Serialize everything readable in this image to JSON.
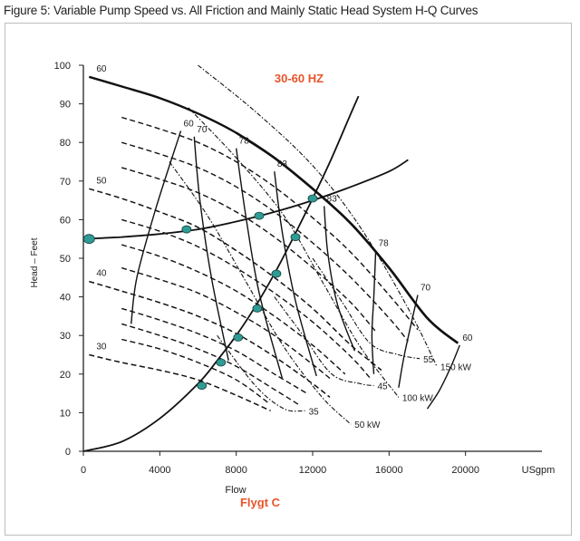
{
  "figure_title": "Figure 5: Variable Pump Speed vs. All Friction and Mainly Static Head System H-Q Curves",
  "chart_data": {
    "type": "line",
    "xlabel": "Flow",
    "ylabel": "Head – Feet",
    "x_unit_label": "USgpm",
    "xlim": [
      0,
      24000
    ],
    "ylim": [
      0,
      100
    ],
    "x_ticks": [
      0,
      4000,
      8000,
      12000,
      16000,
      20000
    ],
    "y_ticks": [
      0,
      10,
      20,
      30,
      40,
      50,
      60,
      70,
      80,
      90,
      100
    ],
    "annotations": {
      "frequency_range": "30-60 HZ",
      "brand": "Flygt C"
    },
    "pump_curves": [
      {
        "label": "60",
        "x": [
          300,
          2000,
          4000,
          6000,
          8000,
          10000,
          12000,
          14000,
          16000,
          18000,
          19600
        ],
        "y": [
          97,
          94.5,
          91.5,
          87.5,
          82.5,
          76,
          68,
          59,
          47.5,
          34.5,
          28
        ]
      },
      {
        "label": "50",
        "x": [
          300,
          2000,
          4000,
          6000,
          8000,
          10000,
          12000,
          14000,
          15600
        ],
        "y": [
          68,
          65.5,
          62,
          58,
          52,
          45,
          37,
          27.5,
          21
        ]
      },
      {
        "label": "40",
        "x": [
          300,
          2000,
          4000,
          6000,
          8000,
          10000,
          12000,
          12900
        ],
        "y": [
          44,
          41.5,
          38.5,
          35,
          30.5,
          24.5,
          17.5,
          14
        ]
      },
      {
        "label": "30",
        "x": [
          300,
          2000,
          4000,
          6000,
          8000,
          9800
        ],
        "y": [
          25,
          23,
          21,
          18.5,
          14.5,
          10.5
        ]
      }
    ],
    "pump_curves_unlabeled": [
      {
        "x": [
          2000,
          4000,
          6000,
          8000,
          10000,
          12000,
          14000,
          16000,
          17500
        ],
        "y": [
          86.5,
          83.5,
          80,
          75,
          68.5,
          60.5,
          51.5,
          40.5,
          31.5
        ]
      },
      {
        "x": [
          2000,
          4000,
          6000,
          8000,
          10000,
          12000,
          14000,
          16000,
          17000
        ],
        "y": [
          80,
          77,
          73.5,
          68.5,
          62,
          54,
          45,
          34.5,
          28.5
        ]
      },
      {
        "x": [
          2000,
          4000,
          6000,
          8000,
          10000,
          12000,
          14000,
          15300
        ],
        "y": [
          73.5,
          70.5,
          67,
          62,
          55.5,
          47.5,
          38.5,
          31
        ]
      },
      {
        "x": [
          2000,
          4000,
          6000,
          8000,
          10000,
          12000,
          14000,
          15000
        ],
        "y": [
          60,
          57,
          53,
          47.5,
          41,
          33.5,
          24.5,
          19
        ]
      },
      {
        "x": [
          2000,
          4000,
          6000,
          8000,
          10000,
          12000,
          13700
        ],
        "y": [
          53.5,
          50.5,
          46.5,
          41.5,
          35,
          27.5,
          20
        ]
      },
      {
        "x": [
          2000,
          4000,
          6000,
          8000,
          10000,
          12000,
          13000
        ],
        "y": [
          47.5,
          44.5,
          41,
          36,
          30,
          22.5,
          18.5
        ]
      },
      {
        "x": [
          2000,
          4000,
          6000,
          8000,
          10000,
          11700
        ],
        "y": [
          37,
          34,
          30.5,
          26,
          20,
          15
        ]
      },
      {
        "x": [
          2000,
          4000,
          6000,
          8000,
          10000,
          11300
        ],
        "y": [
          33,
          30,
          26.5,
          22,
          16,
          12
        ]
      },
      {
        "x": [
          2000,
          4000,
          6000,
          8000,
          9700
        ],
        "y": [
          29,
          26.5,
          23,
          18.5,
          12.5
        ]
      }
    ],
    "efficiency_curves": [
      {
        "label": "60",
        "x": [
          2500,
          2800,
          3800,
          5100
        ],
        "y": [
          33,
          45,
          63,
          83
        ]
      },
      {
        "label": "70",
        "x": [
          5800,
          6100,
          6700,
          7600
        ],
        "y": [
          81.5,
          65,
          45,
          23.5
        ]
      },
      {
        "label": "78",
        "x": [
          8000,
          8500,
          9200,
          10400
        ],
        "y": [
          78.5,
          61,
          41,
          19
        ]
      },
      {
        "label": "83",
        "x": [
          10000,
          10400,
          11100,
          12200
        ],
        "y": [
          72.5,
          57,
          39,
          19.5
        ]
      },
      {
        "label": "83",
        "x": [
          12600,
          12800,
          13300,
          14200
        ],
        "y": [
          63.5,
          51,
          38,
          26
        ]
      },
      {
        "label": "78",
        "x": [
          15300,
          15200,
          15100,
          15200
        ],
        "y": [
          52,
          40,
          30,
          20
        ]
      },
      {
        "label": "70",
        "x": [
          17500,
          17200,
          16800,
          16500
        ],
        "y": [
          40.5,
          34,
          25,
          16.5
        ]
      },
      {
        "label": "60",
        "x": [
          19700,
          19200,
          18600,
          18000
        ],
        "y": [
          27.5,
          21.5,
          15.5,
          11
        ]
      }
    ],
    "power_curves": [
      {
        "label": "150 kW",
        "x": [
          6000,
          9000,
          12000,
          14500,
          17000,
          18500
        ],
        "y": [
          100,
          88,
          74,
          58,
          37,
          22
        ]
      },
      {
        "label": "100 kW",
        "x": [
          5500,
          8000,
          10500,
          12500,
          14500,
          16500
        ],
        "y": [
          89,
          76,
          61,
          44,
          27,
          14
        ]
      },
      {
        "label": "50 kW",
        "x": [
          4500,
          6500,
          8500,
          10500,
          12500,
          14000
        ],
        "y": [
          75,
          61,
          44,
          27,
          14,
          7
        ]
      },
      {
        "label": "55",
        "x": [
          12000,
          13500,
          15000,
          16500,
          17600
        ],
        "y": [
          50,
          39,
          28,
          25,
          24
        ]
      },
      {
        "label": "45",
        "x": [
          10000,
          11500,
          13000,
          14500,
          15200
        ],
        "y": [
          40,
          30,
          20,
          17.5,
          17
        ]
      },
      {
        "label": "35",
        "x": [
          7000,
          9000,
          10500,
          11600
        ],
        "y": [
          30,
          17,
          11,
          10.5
        ]
      }
    ],
    "system_curves": [
      {
        "name": "All Friction",
        "x": [
          0,
          2000,
          4000,
          6000,
          7000,
          8000,
          9000,
          10000,
          11000,
          12000,
          13000,
          14000,
          14400
        ],
        "y": [
          0,
          2.5,
          8.5,
          17.5,
          23.5,
          30,
          37.5,
          46,
          55.5,
          65.5,
          76,
          87.5,
          92
        ]
      },
      {
        "name": "Mainly Static Head",
        "x": [
          0,
          2000,
          4000,
          6000,
          8000,
          10000,
          12000,
          14000,
          16000,
          17000
        ],
        "y": [
          55,
          55.5,
          56.3,
          57.5,
          59.5,
          62,
          65,
          68.5,
          72.5,
          75.5
        ]
      }
    ],
    "operating_points": [
      {
        "x": 300,
        "y": 55
      },
      {
        "x": 5400,
        "y": 57.5
      },
      {
        "x": 9200,
        "y": 61
      },
      {
        "x": 12000,
        "y": 65.5
      },
      {
        "x": 11100,
        "y": 55.5
      },
      {
        "x": 10100,
        "y": 46
      },
      {
        "x": 9100,
        "y": 37
      },
      {
        "x": 8100,
        "y": 29.5
      },
      {
        "x": 7200,
        "y": 23
      },
      {
        "x": 6200,
        "y": 17
      }
    ],
    "colors": {
      "curve": "#111111",
      "operating_point": "#2f9b95",
      "annotation": "#e8542a",
      "axis": "#222222"
    }
  }
}
